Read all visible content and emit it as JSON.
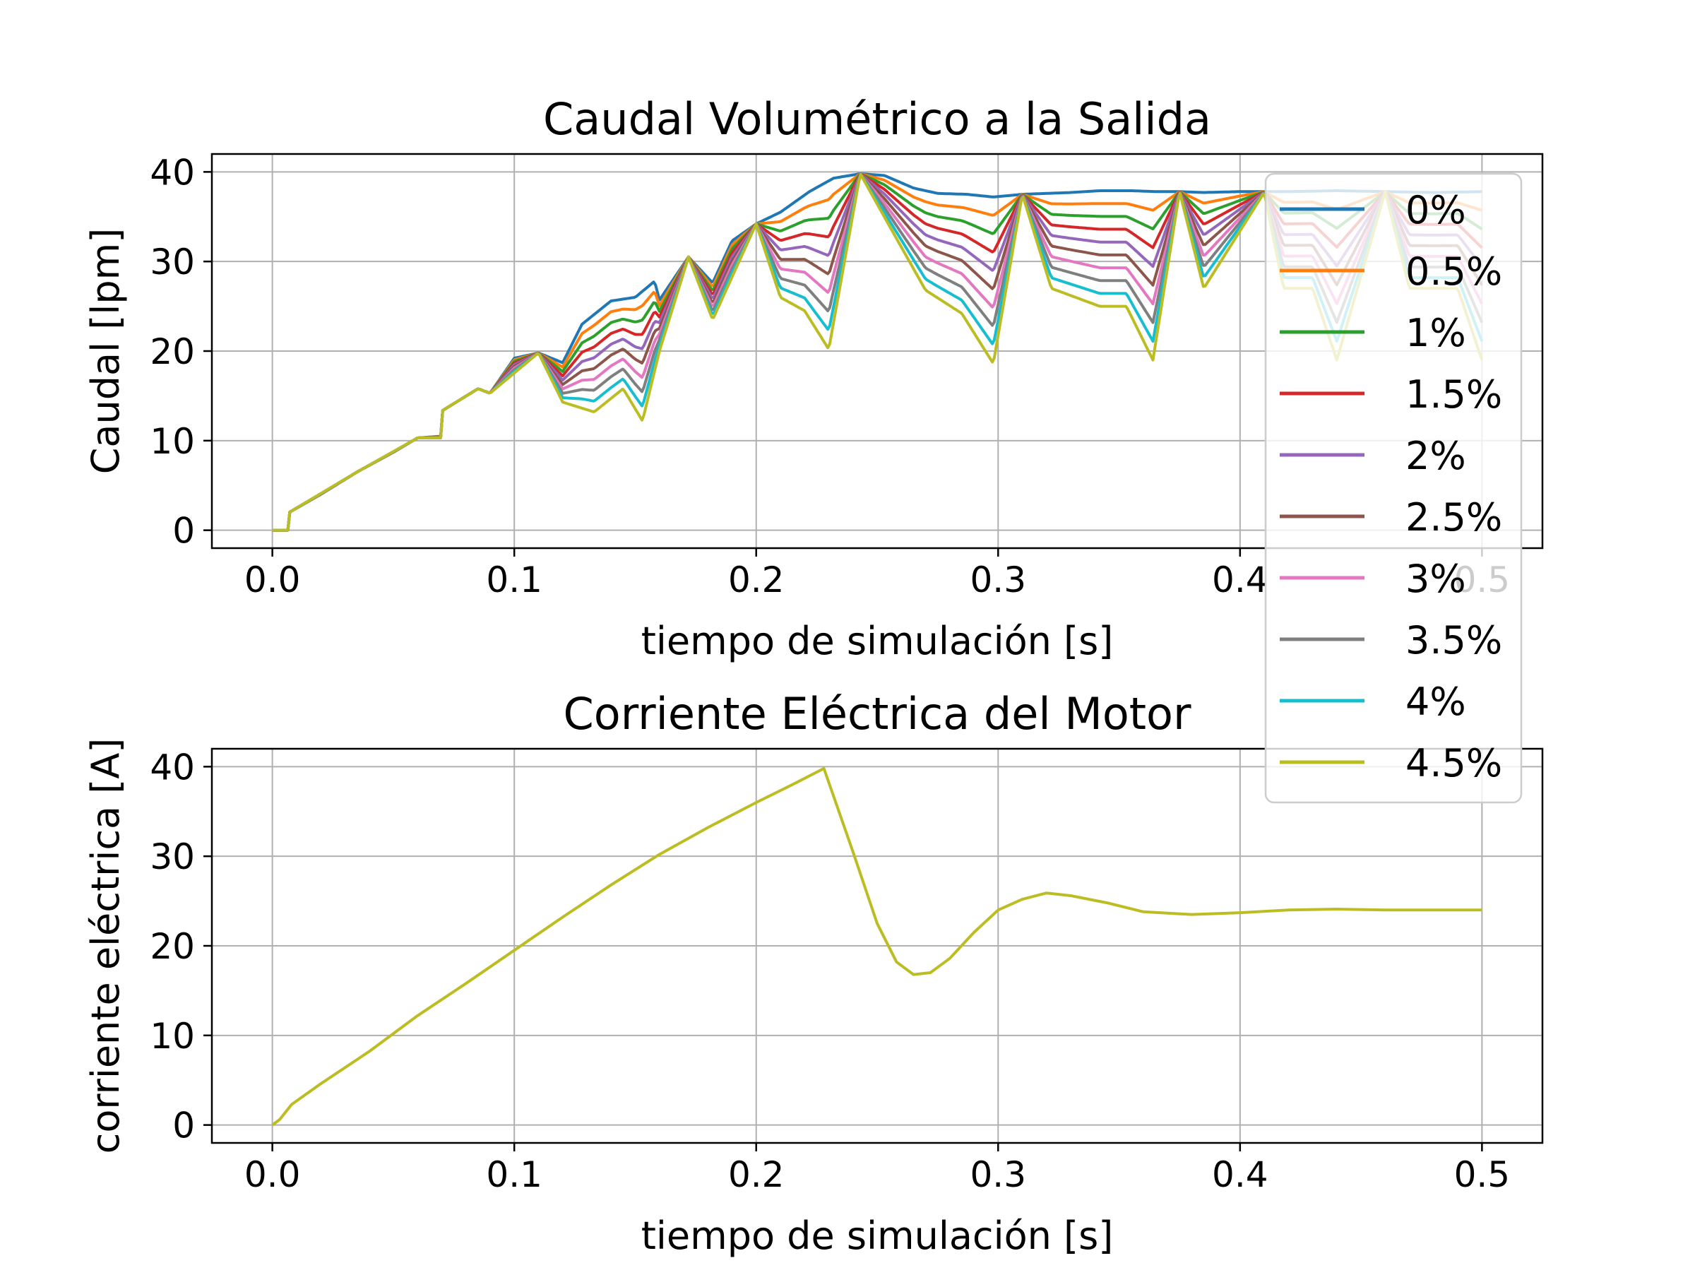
{
  "colors": {
    "0%": "#1f77b4",
    "0.5%": "#ff7f0e",
    "1%": "#2ca02c",
    "1.5%": "#d62728",
    "2%": "#9467bd",
    "2.5%": "#8c564b",
    "3%": "#e377c2",
    "3.5%": "#7f7f7f",
    "4%": "#17becf",
    "4.5%": "#bcbd22"
  },
  "chart_data": [
    {
      "type": "line",
      "title": "Caudal Volumétrico a la Salida",
      "xlabel": "tiempo de simulación [s]",
      "ylabel": "Caudal [lpm]",
      "xlim": [
        -0.025,
        0.525
      ],
      "ylim": [
        -2,
        42
      ],
      "xticks": [
        0.0,
        0.1,
        0.2,
        0.3,
        0.4,
        0.5
      ],
      "xtick_labels": [
        "0.0",
        "0.1",
        "0.2",
        "0.3",
        "0.4",
        "0.5"
      ],
      "yticks": [
        0,
        10,
        20,
        30,
        40
      ],
      "ytick_labels": [
        "0",
        "10",
        "20",
        "30",
        "40"
      ],
      "grid": true,
      "legend": "right",
      "series_names": [
        "0%",
        "0.5%",
        "1%",
        "1.5%",
        "2%",
        "2.5%",
        "3%",
        "3.5%",
        "4%",
        "4.5%"
      ],
      "common_envelope": [
        [
          0.0,
          0
        ],
        [
          0.007,
          0
        ],
        [
          0.007,
          2
        ],
        [
          0.02,
          4
        ],
        [
          0.035,
          6.5
        ],
        [
          0.05,
          8.7
        ],
        [
          0.06,
          10.3
        ],
        [
          0.07,
          10.5
        ],
        [
          0.07,
          13.3
        ],
        [
          0.085,
          15.8
        ],
        [
          0.09,
          15.3
        ],
        [
          0.1,
          19.2
        ],
        [
          0.11,
          19.8
        ],
        [
          0.12,
          18.7
        ],
        [
          0.128,
          23
        ],
        [
          0.14,
          25.6
        ],
        [
          0.15,
          26
        ],
        [
          0.158,
          27.8
        ],
        [
          0.16,
          25.7
        ],
        [
          0.172,
          30.5
        ],
        [
          0.182,
          27.6
        ],
        [
          0.19,
          32.3
        ],
        [
          0.2,
          34.2
        ],
        [
          0.21,
          35.5
        ],
        [
          0.222,
          37.8
        ],
        [
          0.232,
          39.3
        ],
        [
          0.243,
          39.8
        ],
        [
          0.253,
          39.6
        ],
        [
          0.265,
          38.2
        ],
        [
          0.275,
          37.6
        ],
        [
          0.287,
          37.5
        ],
        [
          0.298,
          37.2
        ],
        [
          0.31,
          37.5
        ],
        [
          0.32,
          37.6
        ],
        [
          0.33,
          37.7
        ],
        [
          0.342,
          37.9
        ],
        [
          0.355,
          37.9
        ],
        [
          0.365,
          37.8
        ],
        [
          0.375,
          37.8
        ],
        [
          0.385,
          37.7
        ],
        [
          0.4,
          37.8
        ],
        [
          0.42,
          37.8
        ],
        [
          0.44,
          37.9
        ],
        [
          0.46,
          37.8
        ],
        [
          0.48,
          37.7
        ],
        [
          0.5,
          37.8
        ]
      ],
      "series_4_5_minimum": [
        [
          0.0,
          0
        ],
        [
          0.007,
          0
        ],
        [
          0.007,
          2
        ],
        [
          0.035,
          6.5
        ],
        [
          0.06,
          10.3
        ],
        [
          0.07,
          10.3
        ],
        [
          0.07,
          13.3
        ],
        [
          0.085,
          15.8
        ],
        [
          0.09,
          15.3
        ],
        [
          0.11,
          19.8
        ],
        [
          0.12,
          14.3
        ],
        [
          0.133,
          13.2
        ],
        [
          0.145,
          15.8
        ],
        [
          0.153,
          12.2
        ],
        [
          0.16,
          20
        ],
        [
          0.172,
          30.5
        ],
        [
          0.182,
          23.5
        ],
        [
          0.2,
          34.2
        ],
        [
          0.21,
          26
        ],
        [
          0.22,
          24.5
        ],
        [
          0.23,
          20.2
        ],
        [
          0.243,
          39.8
        ],
        [
          0.255,
          34
        ],
        [
          0.27,
          26.8
        ],
        [
          0.285,
          24.2
        ],
        [
          0.298,
          18.6
        ],
        [
          0.31,
          37.5
        ],
        [
          0.322,
          27
        ],
        [
          0.342,
          25
        ],
        [
          0.353,
          25
        ],
        [
          0.364,
          19
        ],
        [
          0.375,
          37.8
        ],
        [
          0.385,
          27
        ],
        [
          0.41,
          37.7
        ],
        [
          0.418,
          27
        ],
        [
          0.43,
          27
        ],
        [
          0.44,
          19
        ],
        [
          0.46,
          37.8
        ],
        [
          0.47,
          27
        ],
        [
          0.49,
          27
        ],
        [
          0.5,
          19
        ]
      ]
    },
    {
      "type": "line",
      "title": "Corriente Eléctrica del Motor",
      "xlabel": "tiempo de simulación [s]",
      "ylabel": "corriente eléctrica [A]",
      "xlim": [
        -0.025,
        0.525
      ],
      "ylim": [
        -2,
        42
      ],
      "xticks": [
        0.0,
        0.1,
        0.2,
        0.3,
        0.4,
        0.5
      ],
      "xtick_labels": [
        "0.0",
        "0.1",
        "0.2",
        "0.3",
        "0.4",
        "0.5"
      ],
      "yticks": [
        0,
        10,
        20,
        30,
        40
      ],
      "ytick_labels": [
        "0",
        "10",
        "20",
        "30",
        "40"
      ],
      "grid": true,
      "series": [
        {
          "name": "4.5%",
          "x": [
            0.0,
            0.003,
            0.008,
            0.02,
            0.04,
            0.06,
            0.08,
            0.1,
            0.12,
            0.14,
            0.16,
            0.18,
            0.2,
            0.215,
            0.228,
            0.24,
            0.25,
            0.258,
            0.265,
            0.272,
            0.28,
            0.29,
            0.3,
            0.31,
            0.32,
            0.33,
            0.345,
            0.36,
            0.38,
            0.4,
            0.42,
            0.44,
            0.46,
            0.48,
            0.5
          ],
          "y": [
            0.0,
            0.6,
            2.3,
            4.6,
            8.2,
            12.2,
            15.8,
            19.5,
            23.2,
            26.8,
            30.2,
            33.2,
            36.0,
            38.0,
            39.8,
            30.5,
            22.5,
            18.2,
            16.8,
            17.0,
            18.6,
            21.5,
            24.0,
            25.2,
            25.9,
            25.6,
            24.8,
            23.8,
            23.5,
            23.7,
            24.0,
            24.1,
            24.0,
            24.0,
            24.0
          ]
        }
      ]
    }
  ]
}
